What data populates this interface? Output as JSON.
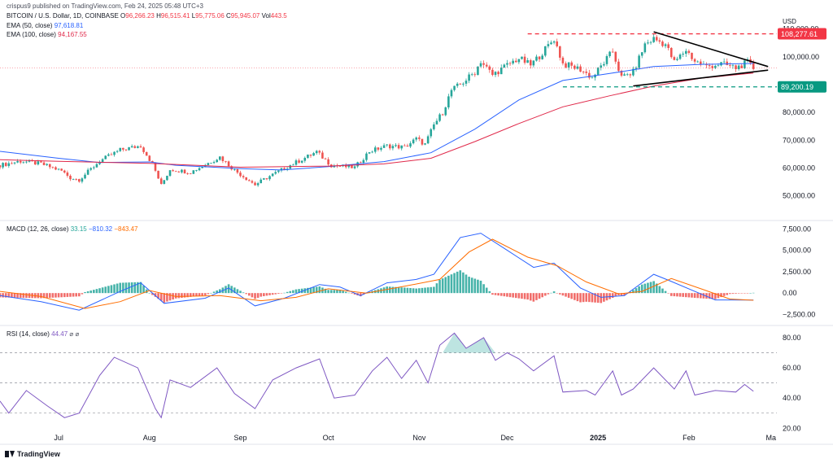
{
  "header": {
    "published": "crispus9 published on TradingView.com, Feb 24, 2025 05:48 UTC+3",
    "symbol": "BITCOIN / U.S. Dollar, 1D, COINBASE",
    "ohlc": {
      "o_label": "O",
      "o": "96,266.23",
      "h_label": "H",
      "h": "96,515.41",
      "l_label": "L",
      "l": "95,775.06",
      "c_label": "C",
      "c": "95,945.07",
      "vol_label": "Vol",
      "vol": "443.5"
    },
    "ema50": {
      "label": "EMA (50, close)",
      "value": "97,618.81"
    },
    "ema100": {
      "label": "EMA (100, close)",
      "value": "94,167.55"
    }
  },
  "macd": {
    "label": "MACD (12, 26, close)",
    "hist": "33.15",
    "macd": "−810.32",
    "signal": "−843.47"
  },
  "rsi": {
    "label": "RSI (14, close)",
    "value": "44.47",
    "symbols": "⌀ ⌀"
  },
  "currency": "USD",
  "price_badges": {
    "resistance": "108,277.61",
    "support": "89,200.19"
  },
  "branding": {
    "name": "TradingView"
  },
  "colors": {
    "up": "#26a69a",
    "down": "#ef5350",
    "ema50": "#2962ff",
    "ema100": "#e0294a",
    "macd": "#2962ff",
    "signal": "#ff6d00",
    "rsi": "#7e57c2",
    "resistance": "#f23645",
    "support": "#089981"
  },
  "chart_data": [
    {
      "type": "candlestick",
      "title": "BITCOIN / U.S. Dollar, 1D, COINBASE",
      "ylabel": "USD",
      "ylim": [
        42000,
        114000
      ],
      "y_ticks": [
        "50,000.00",
        "60,000.00",
        "70,000.00",
        "80,000.00",
        "90,000.00",
        "100,000.00",
        "110,000.00"
      ],
      "y_tick_values": [
        50000,
        60000,
        70000,
        80000,
        90000,
        100000,
        110000
      ],
      "x_ticks": [
        "Jul",
        "Aug",
        "Sep",
        "Oct",
        "Nov",
        "Dec",
        "2025",
        "Feb",
        "Ma"
      ],
      "x_tick_dates": [
        "2024-07-01",
        "2024-08-01",
        "2024-09-01",
        "2024-10-01",
        "2024-11-01",
        "2024-12-01",
        "2025-01-01",
        "2025-02-01",
        "2025-03-01"
      ],
      "date_range": [
        "2024-06-11",
        "2025-02-23"
      ],
      "close_points": [
        [
          "2024-06-11",
          61000
        ],
        [
          "2024-06-18",
          62500
        ],
        [
          "2024-06-25",
          61500
        ],
        [
          "2024-07-02",
          59000
        ],
        [
          "2024-07-05",
          56500
        ],
        [
          "2024-07-08",
          55800
        ],
        [
          "2024-07-15",
          62500
        ],
        [
          "2024-07-22",
          66500
        ],
        [
          "2024-07-29",
          68000
        ],
        [
          "2024-08-02",
          61500
        ],
        [
          "2024-08-05",
          53800
        ],
        [
          "2024-08-08",
          59500
        ],
        [
          "2024-08-15",
          58500
        ],
        [
          "2024-08-25",
          64000
        ],
        [
          "2024-08-30",
          59200
        ],
        [
          "2024-09-06",
          54000
        ],
        [
          "2024-09-10",
          56500
        ],
        [
          "2024-09-18",
          61000
        ],
        [
          "2024-09-27",
          65800
        ],
        [
          "2024-10-02",
          61000
        ],
        [
          "2024-10-10",
          60200
        ],
        [
          "2024-10-15",
          66000
        ],
        [
          "2024-10-21",
          68000
        ],
        [
          "2024-10-27",
          67500
        ],
        [
          "2024-10-31",
          70500
        ],
        [
          "2024-11-03",
          68500
        ],
        [
          "2024-11-06",
          75500
        ],
        [
          "2024-11-09",
          80000
        ],
        [
          "2024-11-12",
          88000
        ],
        [
          "2024-11-15",
          90000
        ],
        [
          "2024-11-20",
          94500
        ],
        [
          "2024-11-22",
          98500
        ],
        [
          "2024-11-26",
          93500
        ],
        [
          "2024-12-01",
          97000
        ],
        [
          "2024-12-05",
          99500
        ],
        [
          "2024-12-09",
          97000
        ],
        [
          "2024-12-13",
          101500
        ],
        [
          "2024-12-17",
          106500
        ],
        [
          "2024-12-20",
          97500
        ],
        [
          "2024-12-26",
          95500
        ],
        [
          "2024-12-30",
          92500
        ],
        [
          "2025-01-06",
          102000
        ],
        [
          "2025-01-09",
          92500
        ],
        [
          "2025-01-13",
          94500
        ],
        [
          "2025-01-17",
          104500
        ],
        [
          "2025-01-20",
          106500
        ],
        [
          "2025-01-24",
          104500
        ],
        [
          "2025-01-27",
          98000
        ],
        [
          "2025-01-31",
          102500
        ],
        [
          "2025-02-03",
          98500
        ],
        [
          "2025-02-07",
          96500
        ],
        [
          "2025-02-12",
          97500
        ],
        [
          "2025-02-17",
          96000
        ],
        [
          "2025-02-21",
          98000
        ],
        [
          "2025-02-23",
          95945
        ]
      ],
      "ema50_points": [
        [
          "2024-06-11",
          66000
        ],
        [
          "2024-07-01",
          63500
        ],
        [
          "2024-07-15",
          62000
        ],
        [
          "2024-08-01",
          62200
        ],
        [
          "2024-08-10",
          61000
        ],
        [
          "2024-09-01",
          59800
        ],
        [
          "2024-09-15",
          59300
        ],
        [
          "2024-10-01",
          60500
        ],
        [
          "2024-10-20",
          62300
        ],
        [
          "2024-11-05",
          65500
        ],
        [
          "2024-11-20",
          74000
        ],
        [
          "2024-12-05",
          84500
        ],
        [
          "2024-12-20",
          91500
        ],
        [
          "2025-01-05",
          94000
        ],
        [
          "2025-01-20",
          96500
        ],
        [
          "2025-02-05",
          97300
        ],
        [
          "2025-02-23",
          97618.81
        ]
      ],
      "ema100_points": [
        [
          "2024-06-11",
          63000
        ],
        [
          "2024-07-01",
          62400
        ],
        [
          "2024-08-01",
          61700
        ],
        [
          "2024-09-01",
          60300
        ],
        [
          "2024-10-01",
          60700
        ],
        [
          "2024-10-20",
          61500
        ],
        [
          "2024-11-05",
          63500
        ],
        [
          "2024-11-20",
          69500
        ],
        [
          "2024-12-05",
          76000
        ],
        [
          "2024-12-20",
          82000
        ],
        [
          "2025-01-05",
          86000
        ],
        [
          "2025-01-20",
          89500
        ],
        [
          "2025-02-05",
          92300
        ],
        [
          "2025-02-23",
          94167.55
        ]
      ],
      "annotations": {
        "resistance": 108277.61,
        "resistance_start": "2024-12-08",
        "support": 89200.19,
        "support_start": "2024-12-20",
        "current_price": 95945.07,
        "triangle_upper": [
          [
            "2025-01-20",
            109000
          ],
          [
            "2025-02-28",
            96500
          ]
        ],
        "triangle_lower": [
          [
            "2025-01-13",
            89500
          ],
          [
            "2025-02-28",
            95200
          ]
        ]
      }
    },
    {
      "type": "macd",
      "title": "MACD (12, 26, close)",
      "ylim": [
        -3600,
        8200
      ],
      "y_ticks": [
        "−2,500.00",
        "0.00",
        "2,500.00",
        "5,000.00",
        "7,500.00"
      ],
      "y_tick_values": [
        -2500,
        0,
        2500,
        5000,
        7500
      ],
      "macd_points": [
        [
          "2024-06-11",
          -300
        ],
        [
          "2024-06-25",
          -1000
        ],
        [
          "2024-07-08",
          -2000
        ],
        [
          "2024-07-22",
          200
        ],
        [
          "2024-07-29",
          1200
        ],
        [
          "2024-08-06",
          -1200
        ],
        [
          "2024-08-20",
          -600
        ],
        [
          "2024-08-28",
          600
        ],
        [
          "2024-09-06",
          -1500
        ],
        [
          "2024-09-16",
          -600
        ],
        [
          "2024-09-28",
          1000
        ],
        [
          "2024-10-05",
          700
        ],
        [
          "2024-10-12",
          -300
        ],
        [
          "2024-10-21",
          1200
        ],
        [
          "2024-10-31",
          1600
        ],
        [
          "2024-11-06",
          2200
        ],
        [
          "2024-11-15",
          6500
        ],
        [
          "2024-11-22",
          7000
        ],
        [
          "2024-12-01",
          5000
        ],
        [
          "2024-12-10",
          3000
        ],
        [
          "2024-12-17",
          3500
        ],
        [
          "2024-12-26",
          600
        ],
        [
          "2025-01-02",
          -500
        ],
        [
          "2025-01-10",
          -300
        ],
        [
          "2025-01-20",
          2200
        ],
        [
          "2025-01-25",
          1500
        ],
        [
          "2025-02-03",
          200
        ],
        [
          "2025-02-10",
          -800
        ],
        [
          "2025-02-23",
          -810.32
        ]
      ],
      "signal_points": [
        [
          "2024-06-11",
          200
        ],
        [
          "2024-06-25",
          -400
        ],
        [
          "2024-07-10",
          -1800
        ],
        [
          "2024-07-22",
          -1000
        ],
        [
          "2024-08-01",
          300
        ],
        [
          "2024-08-10",
          -400
        ],
        [
          "2024-08-25",
          -300
        ],
        [
          "2024-09-08",
          -900
        ],
        [
          "2024-09-20",
          -500
        ],
        [
          "2024-10-01",
          500
        ],
        [
          "2024-10-14",
          0
        ],
        [
          "2024-10-27",
          800
        ],
        [
          "2024-11-08",
          1600
        ],
        [
          "2024-11-18",
          4800
        ],
        [
          "2024-11-26",
          6300
        ],
        [
          "2024-12-08",
          4200
        ],
        [
          "2024-12-18",
          3200
        ],
        [
          "2024-12-28",
          1300
        ],
        [
          "2025-01-08",
          -100
        ],
        [
          "2025-01-16",
          200
        ],
        [
          "2025-01-26",
          1700
        ],
        [
          "2025-02-06",
          400
        ],
        [
          "2025-02-15",
          -700
        ],
        [
          "2025-02-23",
          -843.47
        ]
      ],
      "histogram_sign_by_period": [
        [
          "2024-06-11",
          "negative"
        ],
        [
          "2024-07-15",
          "positive"
        ],
        [
          "2024-08-05",
          "negative"
        ],
        [
          "2024-08-25",
          "positive"
        ],
        [
          "2024-09-01",
          "negative"
        ],
        [
          "2024-09-22",
          "positive"
        ],
        [
          "2024-10-08",
          "negative"
        ],
        [
          "2024-10-15",
          "positive"
        ],
        [
          "2024-12-04",
          "negative"
        ],
        [
          "2024-12-12",
          "positive"
        ],
        [
          "2024-12-16",
          "negative"
        ],
        [
          "2025-01-13",
          "positive"
        ],
        [
          "2025-01-28",
          "negative"
        ],
        [
          "2025-02-20",
          "positive"
        ]
      ]
    },
    {
      "type": "line",
      "title": "RSI (14, close)",
      "ylim": [
        18,
        87
      ],
      "y_ticks": [
        "20.00",
        "40.00",
        "60.00",
        "80.00"
      ],
      "y_tick_values": [
        20,
        40,
        60,
        80
      ],
      "bands": [
        30,
        50,
        70
      ],
      "rsi_points": [
        [
          "2024-06-11",
          38
        ],
        [
          "2024-06-14",
          30
        ],
        [
          "2024-06-20",
          45
        ],
        [
          "2024-06-27",
          35
        ],
        [
          "2024-07-03",
          27
        ],
        [
          "2024-07-08",
          30
        ],
        [
          "2024-07-15",
          55
        ],
        [
          "2024-07-20",
          67
        ],
        [
          "2024-07-28",
          60
        ],
        [
          "2024-08-03",
          33
        ],
        [
          "2024-08-05",
          27
        ],
        [
          "2024-08-08",
          52
        ],
        [
          "2024-08-15",
          47
        ],
        [
          "2024-08-24",
          60
        ],
        [
          "2024-08-30",
          43
        ],
        [
          "2024-09-06",
          33
        ],
        [
          "2024-09-12",
          52
        ],
        [
          "2024-09-20",
          60
        ],
        [
          "2024-09-28",
          66
        ],
        [
          "2024-10-03",
          40
        ],
        [
          "2024-10-10",
          42
        ],
        [
          "2024-10-16",
          58
        ],
        [
          "2024-10-21",
          67
        ],
        [
          "2024-10-26",
          53
        ],
        [
          "2024-10-31",
          65
        ],
        [
          "2024-11-04",
          50
        ],
        [
          "2024-11-08",
          75
        ],
        [
          "2024-11-13",
          83
        ],
        [
          "2024-11-17",
          73
        ],
        [
          "2024-11-23",
          80
        ],
        [
          "2024-11-27",
          65
        ],
        [
          "2024-12-01",
          70
        ],
        [
          "2024-12-05",
          66
        ],
        [
          "2024-12-10",
          58
        ],
        [
          "2024-12-17",
          68
        ],
        [
          "2024-12-20",
          44
        ],
        [
          "2024-12-28",
          45
        ],
        [
          "2024-12-31",
          42
        ],
        [
          "2025-01-06",
          58
        ],
        [
          "2025-01-09",
          42
        ],
        [
          "2025-01-13",
          46
        ],
        [
          "2025-01-20",
          60
        ],
        [
          "2025-01-27",
          46
        ],
        [
          "2025-01-31",
          58
        ],
        [
          "2025-02-03",
          42
        ],
        [
          "2025-02-10",
          45
        ],
        [
          "2025-02-17",
          44
        ],
        [
          "2025-02-20",
          49
        ],
        [
          "2025-02-23",
          44.47
        ]
      ]
    }
  ]
}
